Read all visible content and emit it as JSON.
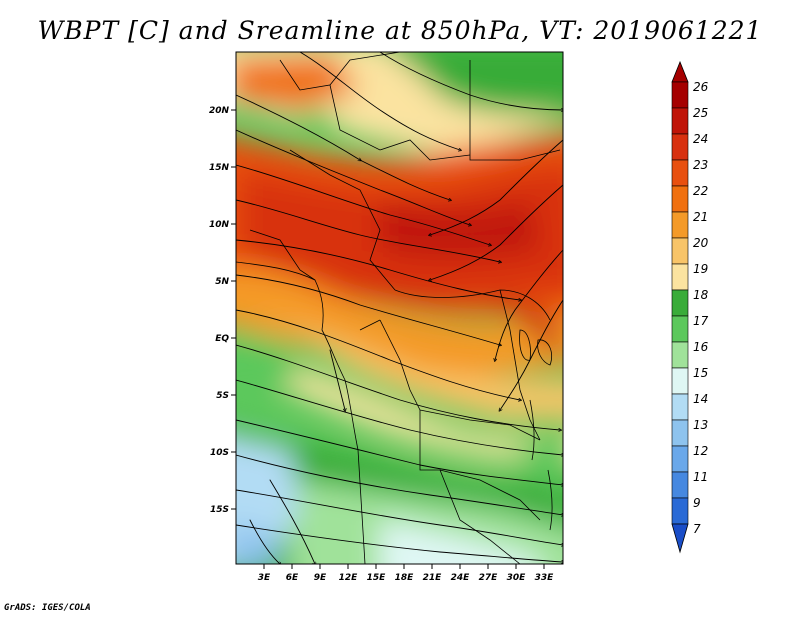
{
  "title": "WBPT [C] and Sreamline at 850hPa, VT: 2019061221",
  "credit": "GrADS: IGES/COLA",
  "map": {
    "variable": "Wet-bulb potential temperature",
    "units": "C",
    "level": "850hPa",
    "lat_labels": [
      "20N",
      "15N",
      "10N",
      "5N",
      "EQ",
      "5S",
      "10S",
      "15S"
    ],
    "lon_labels": [
      "3E",
      "6E",
      "9E",
      "12E",
      "15E",
      "18E",
      "21E",
      "24E",
      "27E",
      "30E",
      "33E"
    ]
  },
  "colorbar": {
    "labels": [
      "26",
      "25",
      "24",
      "23",
      "22",
      "21",
      "20",
      "19",
      "18",
      "17",
      "16",
      "15",
      "14",
      "13",
      "12",
      "11",
      "9",
      "7"
    ],
    "colors": {
      "c26": "#a50000",
      "c25": "#c01408",
      "c24": "#d8300f",
      "c23": "#e85010",
      "c22": "#f07010",
      "c21": "#f49a28",
      "c20": "#f8c468",
      "c19": "#fbe3a0",
      "c18": "#39ac39",
      "c17": "#5cc85c",
      "c16": "#a0e29a",
      "c15": "#dff7f4",
      "c14": "#b2dcf4",
      "c13": "#8ec3ee",
      "c12": "#6aa8ea",
      "c11": "#4688e0",
      "c9": "#2a6ad6",
      "c7": "#1a4ec8"
    }
  }
}
